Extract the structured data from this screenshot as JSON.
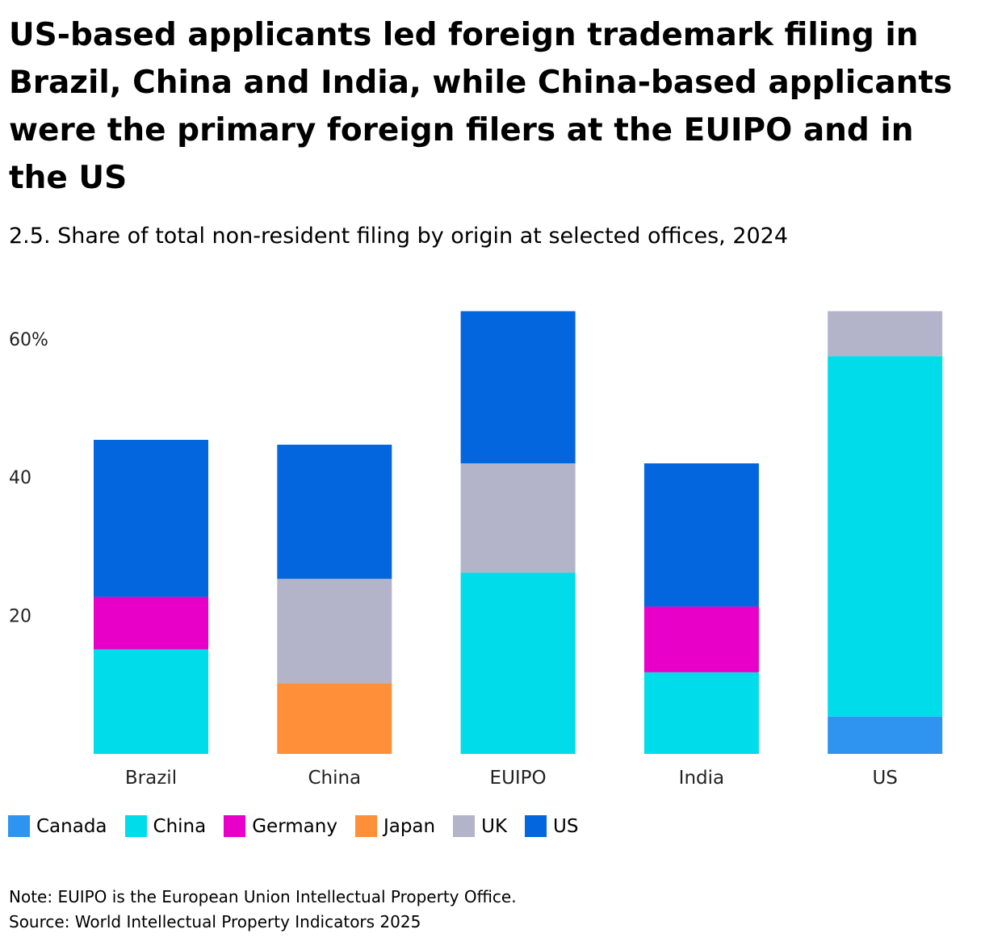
{
  "title": "US-based applicants led foreign trademark filing in Brazil, China and India, while China-based applicants were the primary foreign filers at the EUIPO and in the US",
  "subtitle": "2.5. Share of total non-resident filing by origin at selected offices, 2024",
  "note": "Note: EUIPO is the European Union Intellectual Property Office.",
  "source": "Source: World Intellectual Property Indicators 2025",
  "chart_data": {
    "type": "bar",
    "stacked": true,
    "categories": [
      "Brazil",
      "China",
      "EUIPO",
      "India",
      "US"
    ],
    "ylim": [
      0,
      64
    ],
    "yticks": [
      20,
      40,
      60
    ],
    "ytick_labels": [
      "20",
      "40",
      "60%"
    ],
    "grid": false,
    "legend_position": "bottom-left",
    "series": [
      {
        "name": "Canada",
        "color": "#2f94f0",
        "values": [
          0,
          0,
          0,
          0,
          5.4
        ]
      },
      {
        "name": "China",
        "color": "#00dcea",
        "values": [
          15.1,
          0,
          26.2,
          11.8,
          52.1
        ]
      },
      {
        "name": "Germany",
        "color": "#e800c8",
        "values": [
          7.6,
          0,
          0,
          9.5,
          0
        ]
      },
      {
        "name": "Japan",
        "color": "#ff8f38",
        "values": [
          0,
          10.2,
          0,
          0,
          0
        ]
      },
      {
        "name": "UK",
        "color": "#b3b4c9",
        "values": [
          0,
          15.1,
          15.8,
          0,
          6.5
        ]
      },
      {
        "name": "US",
        "color": "#0366de",
        "values": [
          22.7,
          19.4,
          22.0,
          20.7,
          0
        ]
      }
    ]
  }
}
